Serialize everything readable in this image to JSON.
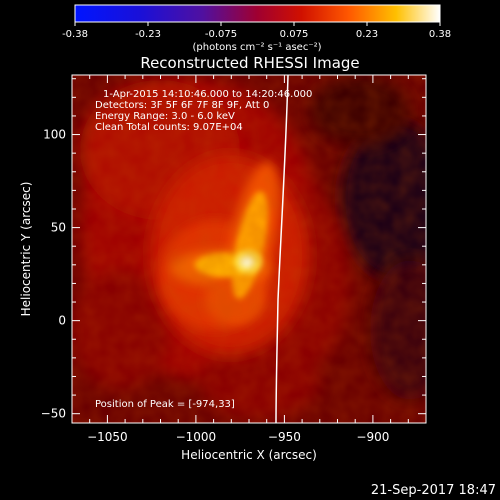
{
  "colorbar": {
    "ticks": [
      "-0.38",
      "-0.23",
      "-0.075",
      "0.075",
      "0.23",
      "0.38"
    ],
    "unit_label": "(photons cm⁻² s⁻¹ asec⁻²)",
    "range": [
      -0.38,
      0.38
    ]
  },
  "chart_data": {
    "type": "heatmap",
    "title": "Reconstructed RHESSI Image",
    "xlabel": "Heliocentric X (arcsec)",
    "ylabel": "Heliocentric Y (arcsec)",
    "xlim": [
      -1070,
      -870
    ],
    "ylim": [
      -55,
      132
    ],
    "x_ticks": [
      {
        "v": -1050,
        "label": "−1050"
      },
      {
        "v": -1000,
        "label": "−1000"
      },
      {
        "v": -950,
        "label": "−950"
      },
      {
        "v": -900,
        "label": "−900"
      }
    ],
    "y_ticks": [
      {
        "v": -50,
        "label": "−50"
      },
      {
        "v": 0,
        "label": "0"
      },
      {
        "v": 50,
        "label": "50"
      },
      {
        "v": 100,
        "label": "100"
      }
    ],
    "annotations": [
      "1-Apr-2015 14:10:46.000 to 14:20:46.000",
      "Detectors: 3F 5F 6F 7F 8F 9F, Att 0",
      "Energy Range: 3.0 - 6.0 keV",
      "Clean    Total counts: 9.07E+04"
    ],
    "peak_label": "Position of Peak = [-974,33]",
    "peak": {
      "x": -974,
      "y": 33,
      "value": 0.38
    }
  },
  "footer_date": "21-Sep-2017 18:47"
}
